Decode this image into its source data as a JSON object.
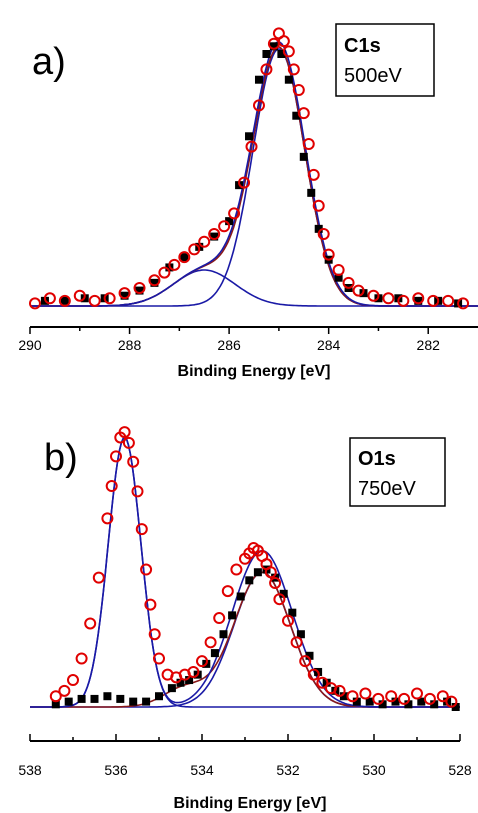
{
  "chart_data": [
    {
      "type": "scatter",
      "panel_label": "a)",
      "box_title": "C1s",
      "box_subtitle": "500eV",
      "xlabel": "Binding Energy [eV]",
      "xlim": [
        290,
        281
      ],
      "x_reversed": true,
      "xticks": [
        290,
        288,
        286,
        284,
        282
      ],
      "ylim": [
        0,
        1.12
      ],
      "y_axis_shown": false,
      "grid": false,
      "colors": {
        "open_circles": "#e00000",
        "filled_squares": "#000000",
        "fit_blue": "#1a1aa6",
        "fit_dark_red": "#8b1a1a"
      },
      "series": [
        {
          "marker": "filled-square",
          "x": [
            289.7,
            289.3,
            288.9,
            288.5,
            288.1,
            287.8,
            287.5,
            287.2,
            286.9,
            286.6,
            286.3,
            286.0,
            285.8,
            285.6,
            285.4,
            285.25,
            285.1,
            284.95,
            284.8,
            284.65,
            284.5,
            284.35,
            284.2,
            284.0,
            283.8,
            283.6,
            283.3,
            283.0,
            282.6,
            282.2,
            281.8,
            281.4
          ],
          "y": [
            0.02,
            0.02,
            0.03,
            0.03,
            0.04,
            0.06,
            0.09,
            0.15,
            0.19,
            0.23,
            0.27,
            0.33,
            0.47,
            0.66,
            0.88,
            0.98,
            1.01,
            0.98,
            0.88,
            0.74,
            0.58,
            0.44,
            0.3,
            0.18,
            0.11,
            0.07,
            0.05,
            0.03,
            0.03,
            0.02,
            0.02,
            0.01
          ]
        },
        {
          "marker": "open-circle",
          "x": [
            289.9,
            289.6,
            289.3,
            289.0,
            288.7,
            288.4,
            288.1,
            287.8,
            287.5,
            287.3,
            287.1,
            286.9,
            286.7,
            286.5,
            286.3,
            286.1,
            285.9,
            285.7,
            285.55,
            285.4,
            285.25,
            285.1,
            285.0,
            284.9,
            284.8,
            284.7,
            284.6,
            284.5,
            284.4,
            284.3,
            284.2,
            284.1,
            284.0,
            283.8,
            283.6,
            283.4,
            283.1,
            282.8,
            282.5,
            282.2,
            281.9,
            281.6,
            281.3
          ],
          "y": [
            0.01,
            0.03,
            0.02,
            0.04,
            0.02,
            0.03,
            0.05,
            0.07,
            0.1,
            0.13,
            0.16,
            0.19,
            0.22,
            0.25,
            0.28,
            0.31,
            0.36,
            0.48,
            0.62,
            0.78,
            0.92,
            1.02,
            1.06,
            1.03,
            0.99,
            0.92,
            0.84,
            0.75,
            0.63,
            0.51,
            0.39,
            0.28,
            0.2,
            0.14,
            0.09,
            0.06,
            0.04,
            0.03,
            0.02,
            0.03,
            0.02,
            0.02,
            0.01
          ]
        }
      ],
      "fits": [
        {
          "color": "#1a1aa6",
          "components": [
            {
              "center": 285.0,
              "amplitude": 1.0,
              "sigma": 0.52
            }
          ]
        },
        {
          "color": "#1a1aa6",
          "components": [
            {
              "center": 286.5,
              "amplitude": 0.14,
              "sigma": 0.62
            }
          ]
        },
        {
          "color": "#8b1a1a",
          "components": [
            {
              "center": 285.0,
              "amplitude": 1.0,
              "sigma": 0.52
            },
            {
              "center": 286.5,
              "amplitude": 0.14,
              "sigma": 0.62
            }
          ]
        },
        {
          "color": "#1a1aa6",
          "components": [
            {
              "center": 285.0,
              "amplitude": 1.02,
              "sigma": 0.53
            },
            {
              "center": 286.5,
              "amplitude": 0.14,
              "sigma": 0.62
            }
          ]
        }
      ]
    },
    {
      "type": "scatter",
      "panel_label": "b)",
      "box_title": "O1s",
      "box_subtitle": "750eV",
      "xlabel": "Binding Energy [eV]",
      "xlim": [
        538,
        528
      ],
      "x_reversed": true,
      "xticks": [
        538,
        536,
        534,
        532,
        530,
        528
      ],
      "ylim": [
        0,
        1.05
      ],
      "y_axis_shown": false,
      "grid": false,
      "colors": {
        "open_circles": "#e00000",
        "filled_squares": "#000000",
        "fit_blue": "#1a1aa6",
        "fit_dark_red": "#8b1a1a"
      },
      "series": [
        {
          "marker": "filled-square",
          "x": [
            537.4,
            537.1,
            536.8,
            536.5,
            536.2,
            535.9,
            535.6,
            535.3,
            535.0,
            534.7,
            534.5,
            534.3,
            534.1,
            533.9,
            533.7,
            533.5,
            533.3,
            533.1,
            532.9,
            532.7,
            532.5,
            532.3,
            532.1,
            531.9,
            531.7,
            531.5,
            531.3,
            531.1,
            530.9,
            530.7,
            530.4,
            530.1,
            529.8,
            529.5,
            529.2,
            528.9,
            528.6,
            528.3,
            528.1
          ],
          "y": [
            0.01,
            0.02,
            0.03,
            0.03,
            0.04,
            0.03,
            0.02,
            0.02,
            0.04,
            0.07,
            0.09,
            0.1,
            0.12,
            0.16,
            0.2,
            0.27,
            0.34,
            0.41,
            0.47,
            0.5,
            0.51,
            0.48,
            0.42,
            0.35,
            0.27,
            0.19,
            0.13,
            0.09,
            0.06,
            0.04,
            0.02,
            0.02,
            0.01,
            0.02,
            0.01,
            0.02,
            0.01,
            0.02,
            0.0
          ]
        },
        {
          "marker": "open-circle",
          "x": [
            537.4,
            537.2,
            537.0,
            536.8,
            536.6,
            536.4,
            536.2,
            536.1,
            536.0,
            535.9,
            535.8,
            535.7,
            535.6,
            535.5,
            535.4,
            535.3,
            535.2,
            535.1,
            535.0,
            534.8,
            534.6,
            534.4,
            534.2,
            534.0,
            533.8,
            533.6,
            533.4,
            533.2,
            533.0,
            532.9,
            532.8,
            532.7,
            532.6,
            532.5,
            532.4,
            532.3,
            532.2,
            532.0,
            531.8,
            531.6,
            531.4,
            531.2,
            531.0,
            530.8,
            530.5,
            530.2,
            529.9,
            529.6,
            529.3,
            529.0,
            528.7,
            528.4,
            528.2
          ],
          "y": [
            0.04,
            0.06,
            0.1,
            0.18,
            0.31,
            0.48,
            0.7,
            0.82,
            0.93,
            1.0,
            1.02,
            0.98,
            0.91,
            0.8,
            0.66,
            0.51,
            0.38,
            0.27,
            0.18,
            0.12,
            0.11,
            0.12,
            0.13,
            0.17,
            0.24,
            0.33,
            0.43,
            0.51,
            0.55,
            0.57,
            0.59,
            0.58,
            0.56,
            0.53,
            0.5,
            0.46,
            0.4,
            0.32,
            0.24,
            0.17,
            0.12,
            0.09,
            0.07,
            0.06,
            0.04,
            0.05,
            0.03,
            0.04,
            0.03,
            0.05,
            0.03,
            0.04,
            0.02
          ]
        }
      ],
      "fits": [
        {
          "color": "#1a1aa6",
          "components": [
            {
              "center": 535.8,
              "amplitude": 1.0,
              "sigma": 0.38
            }
          ]
        },
        {
          "color": "#1a1aa6",
          "components": [
            {
              "center": 532.6,
              "amplitude": 0.5,
              "sigma": 0.66
            }
          ]
        },
        {
          "color": "#8b1a1a",
          "components": [
            {
              "center": 532.6,
              "amplitude": 0.5,
              "sigma": 0.66
            },
            {
              "center": 534.4,
              "amplitude": 0.07,
              "sigma": 0.5
            }
          ]
        },
        {
          "color": "#1a1aa6",
          "components": [
            {
              "center": 535.8,
              "amplitude": 1.0,
              "sigma": 0.38
            },
            {
              "center": 532.6,
              "amplitude": 0.58,
              "sigma": 0.7
            }
          ]
        }
      ]
    }
  ]
}
